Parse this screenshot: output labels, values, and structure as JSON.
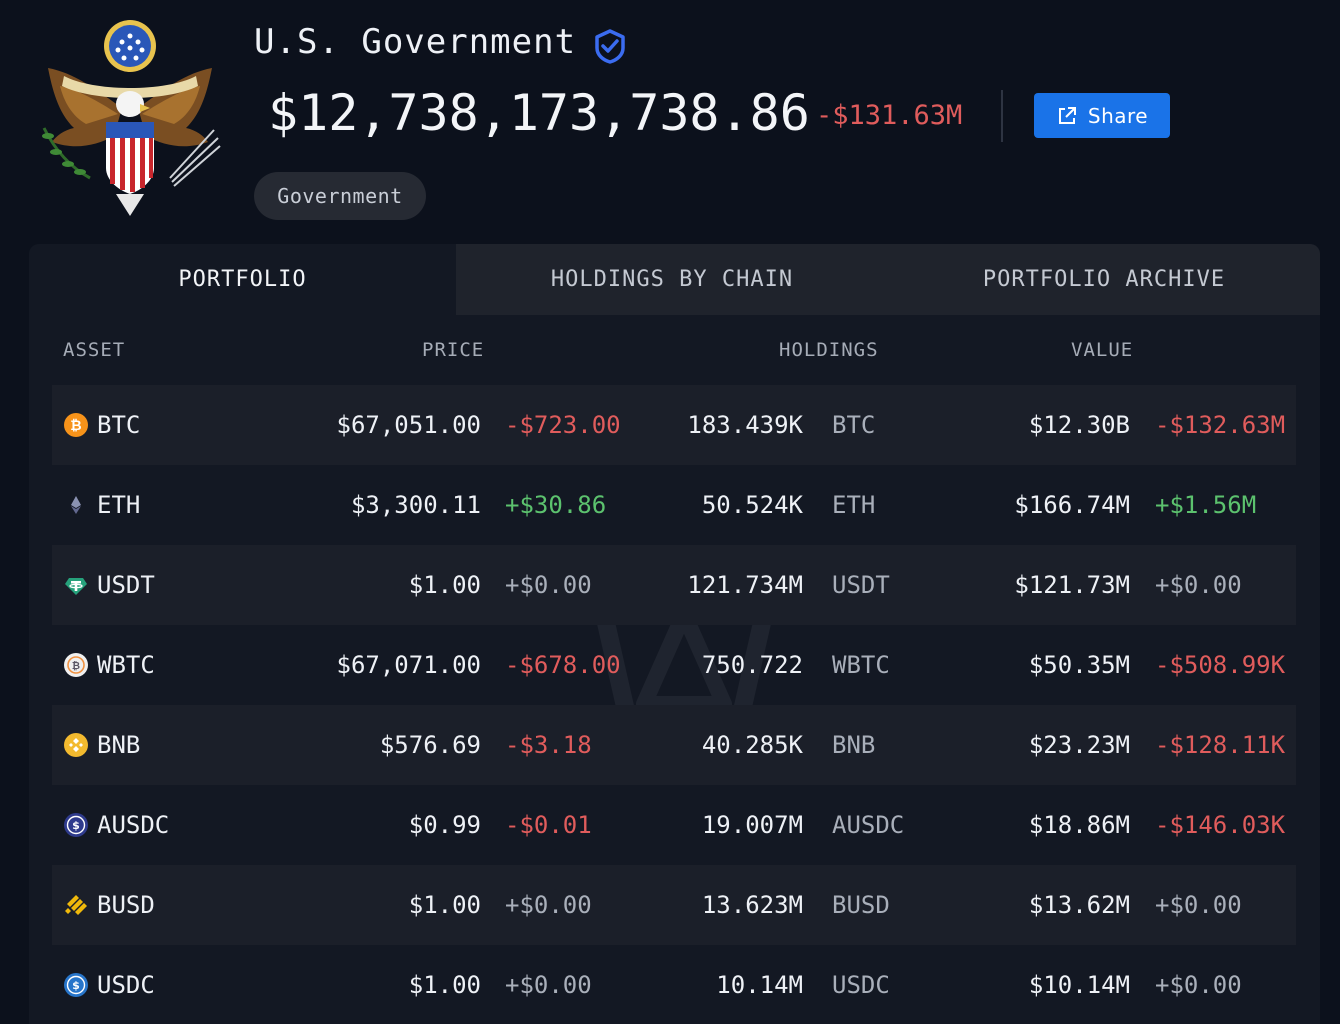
{
  "entity": {
    "name": "U.S. Government",
    "total_value": "$12,738,173,738.86",
    "total_change": "-$131.63M",
    "tag": "Government"
  },
  "actions": {
    "share_label": "Share"
  },
  "tabs": [
    {
      "label": "PORTFOLIO",
      "active": true
    },
    {
      "label": "HOLDINGS BY CHAIN",
      "active": false
    },
    {
      "label": "PORTFOLIO ARCHIVE",
      "active": false
    }
  ],
  "table": {
    "headers": {
      "asset": "ASSET",
      "price": "PRICE",
      "holdings": "HOLDINGS",
      "value": "VALUE"
    },
    "rows": [
      {
        "symbol": "BTC",
        "icon": "bitcoin-icon",
        "price": "$67,051.00",
        "price_change": "-$723.00",
        "price_dir": "neg",
        "holdings": "183.439K",
        "holdings_unit": "BTC",
        "value": "$12.30B",
        "value_change": "-$132.63M",
        "value_dir": "neg"
      },
      {
        "symbol": "ETH",
        "icon": "ethereum-icon",
        "price": "$3,300.11",
        "price_change": "+$30.86",
        "price_dir": "pos",
        "holdings": "50.524K",
        "holdings_unit": "ETH",
        "value": "$166.74M",
        "value_change": "+$1.56M",
        "value_dir": "pos"
      },
      {
        "symbol": "USDT",
        "icon": "tether-icon",
        "price": "$1.00",
        "price_change": "+$0.00",
        "price_dir": "zero",
        "holdings": "121.734M",
        "holdings_unit": "USDT",
        "value": "$121.73M",
        "value_change": "+$0.00",
        "value_dir": "zero"
      },
      {
        "symbol": "WBTC",
        "icon": "wrapped-bitcoin-icon",
        "price": "$67,071.00",
        "price_change": "-$678.00",
        "price_dir": "neg",
        "holdings": "750.722",
        "holdings_unit": "WBTC",
        "value": "$50.35M",
        "value_change": "-$508.99K",
        "value_dir": "neg"
      },
      {
        "symbol": "BNB",
        "icon": "bnb-icon",
        "price": "$576.69",
        "price_change": "-$3.18",
        "price_dir": "neg",
        "holdings": "40.285K",
        "holdings_unit": "BNB",
        "value": "$23.23M",
        "value_change": "-$128.11K",
        "value_dir": "neg"
      },
      {
        "symbol": "AUSDC",
        "icon": "ausdc-icon",
        "price": "$0.99",
        "price_change": "-$0.01",
        "price_dir": "neg",
        "holdings": "19.007M",
        "holdings_unit": "AUSDC",
        "value": "$18.86M",
        "value_change": "-$146.03K",
        "value_dir": "neg"
      },
      {
        "symbol": "BUSD",
        "icon": "busd-icon",
        "price": "$1.00",
        "price_change": "+$0.00",
        "price_dir": "zero",
        "holdings": "13.623M",
        "holdings_unit": "BUSD",
        "value": "$13.62M",
        "value_change": "+$0.00",
        "value_dir": "zero"
      },
      {
        "symbol": "USDC",
        "icon": "usdc-icon",
        "price": "$1.00",
        "price_change": "+$0.00",
        "price_dir": "zero",
        "holdings": "10.14M",
        "holdings_unit": "USDC",
        "value": "$10.14M",
        "value_change": "+$0.00",
        "value_dir": "zero"
      }
    ]
  },
  "colors": {
    "background": "#0c111c",
    "accent": "#1a73e8",
    "negative": "#e05c5c",
    "positive": "#5cc26e",
    "verified_badge": "#3b6cf0"
  }
}
